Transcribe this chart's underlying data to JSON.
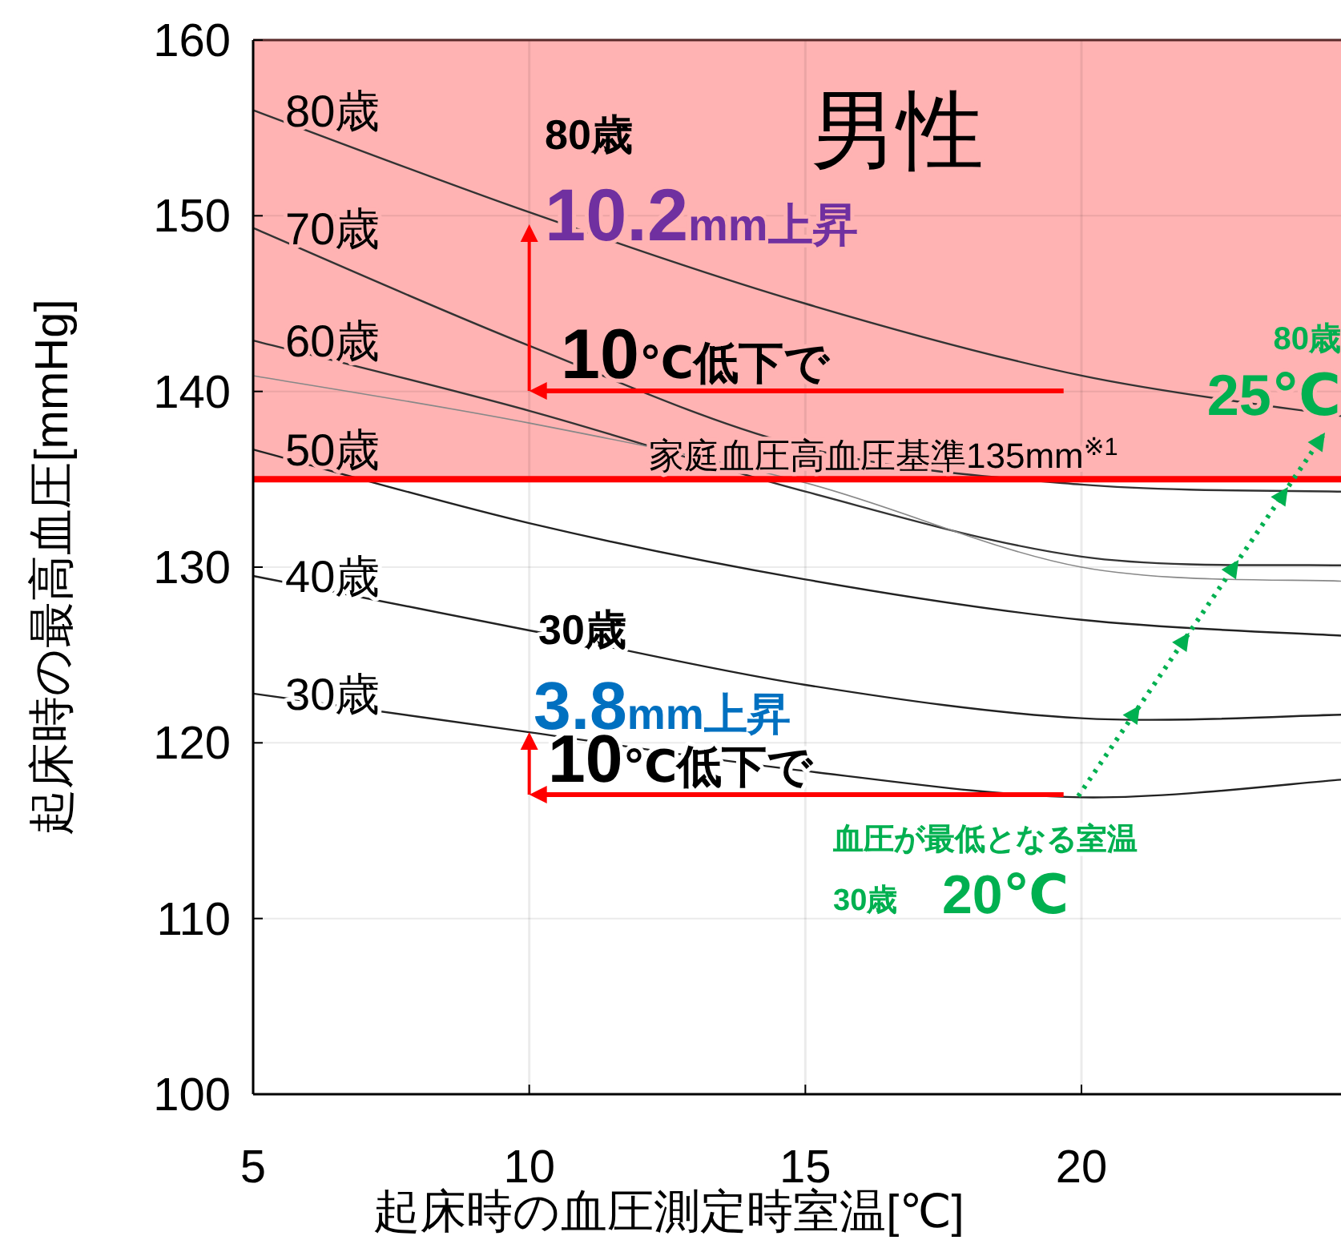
{
  "chart_data": {
    "type": "line",
    "title": "男性",
    "xlabel": "起床時の血圧測定時室温[℃]",
    "ylabel": "起床時の最高血圧[mmHg]",
    "x": [
      5,
      10,
      15,
      20,
      24.7
    ],
    "series": [
      {
        "name": "80歳",
        "color": "#333333",
        "values": [
          156.0,
          150.2,
          145.0,
          140.9,
          138.6
        ]
      },
      {
        "name": "70歳",
        "color": "#333333",
        "values": [
          149.3,
          142.6,
          136.8,
          134.7,
          134.3
        ]
      },
      {
        "name": "60歳",
        "color": "#333333",
        "values": [
          142.9,
          138.9,
          134.3,
          130.6,
          130.1
        ]
      },
      {
        "color": "#888888",
        "values": [
          140.9,
          138.2,
          134.8,
          130.0,
          129.2
        ]
      },
      {
        "name": "50歳",
        "color": "#222222",
        "values": [
          136.7,
          132.5,
          129.3,
          127.0,
          126.1
        ]
      },
      {
        "name": "40歳",
        "color": "#222222",
        "values": [
          129.5,
          126.4,
          123.3,
          121.4,
          121.6
        ]
      },
      {
        "name": "30歳",
        "color": "#222222",
        "values": [
          122.8,
          120.6,
          118.4,
          116.9,
          117.9
        ]
      }
    ],
    "xlim": [
      5,
      24.7
    ],
    "ylim": [
      100,
      160
    ],
    "xticks": [
      5,
      10,
      15,
      20
    ],
    "yticks": [
      100,
      110,
      120,
      130,
      140,
      150,
      160
    ],
    "grid": true,
    "legend": false,
    "marker": "none",
    "line_style": "solid",
    "ref_lines": [
      {
        "axis": "y",
        "value": 135,
        "label": "家庭血圧高血圧基準135mm$^{※1}$",
        "color": "#ff0000"
      }
    ],
    "bands": [
      {
        "axis": "y",
        "from": 135,
        "to": 160,
        "color": "#ffb3b3"
      }
    ],
    "annotations": [
      "80歳",
      "10.2mm上昇",
      "10℃低下で",
      "80歳",
      "25℃",
      "30歳",
      "3.8mm上昇",
      "10℃低下で",
      "血圧が最低となる室温",
      "30歳",
      "20℃"
    ]
  }
}
